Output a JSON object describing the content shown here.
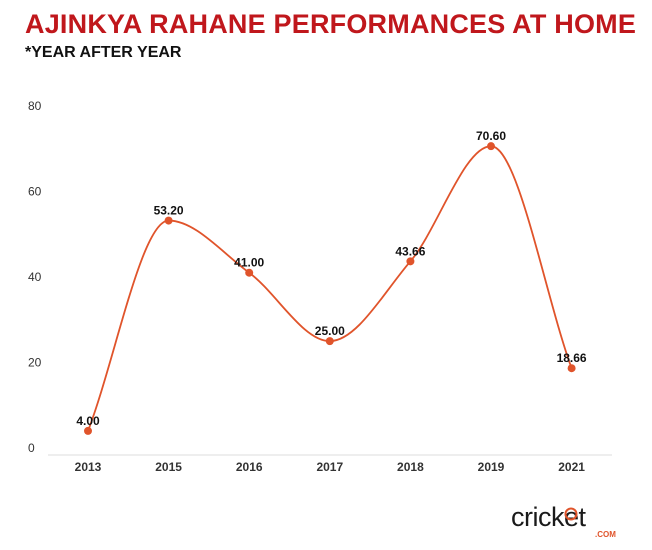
{
  "title": "AJINKYA RAHANE PERFORMANCES AT HOME",
  "subtitle": "*YEAR AFTER YEAR",
  "logo": {
    "text": "cricket",
    "sub": ".COM"
  },
  "colors": {
    "title": "#c0171c",
    "line": "#e0542b",
    "marker": "#e0542b",
    "grid": "#dddddd"
  },
  "chart_data": {
    "type": "line",
    "categories": [
      "2013",
      "2015",
      "2016",
      "2017",
      "2018",
      "2019",
      "2021"
    ],
    "series": [
      {
        "values": [
          4.0,
          53.2,
          41.0,
          25.0,
          43.66,
          70.6,
          18.66
        ]
      }
    ],
    "data_labels": [
      "4.00",
      "53.20",
      "41.00",
      "25.00",
      "43.66",
      "70.60",
      "18.66"
    ],
    "yticks": [
      "0",
      "20",
      "40",
      "60",
      "80"
    ],
    "ylim": [
      0,
      80
    ],
    "smooth": true,
    "grid": false,
    "title": "AJINKYA RAHANE PERFORMANCES AT HOME",
    "subtitle": "*YEAR AFTER YEAR",
    "xlabel": "",
    "ylabel": ""
  }
}
